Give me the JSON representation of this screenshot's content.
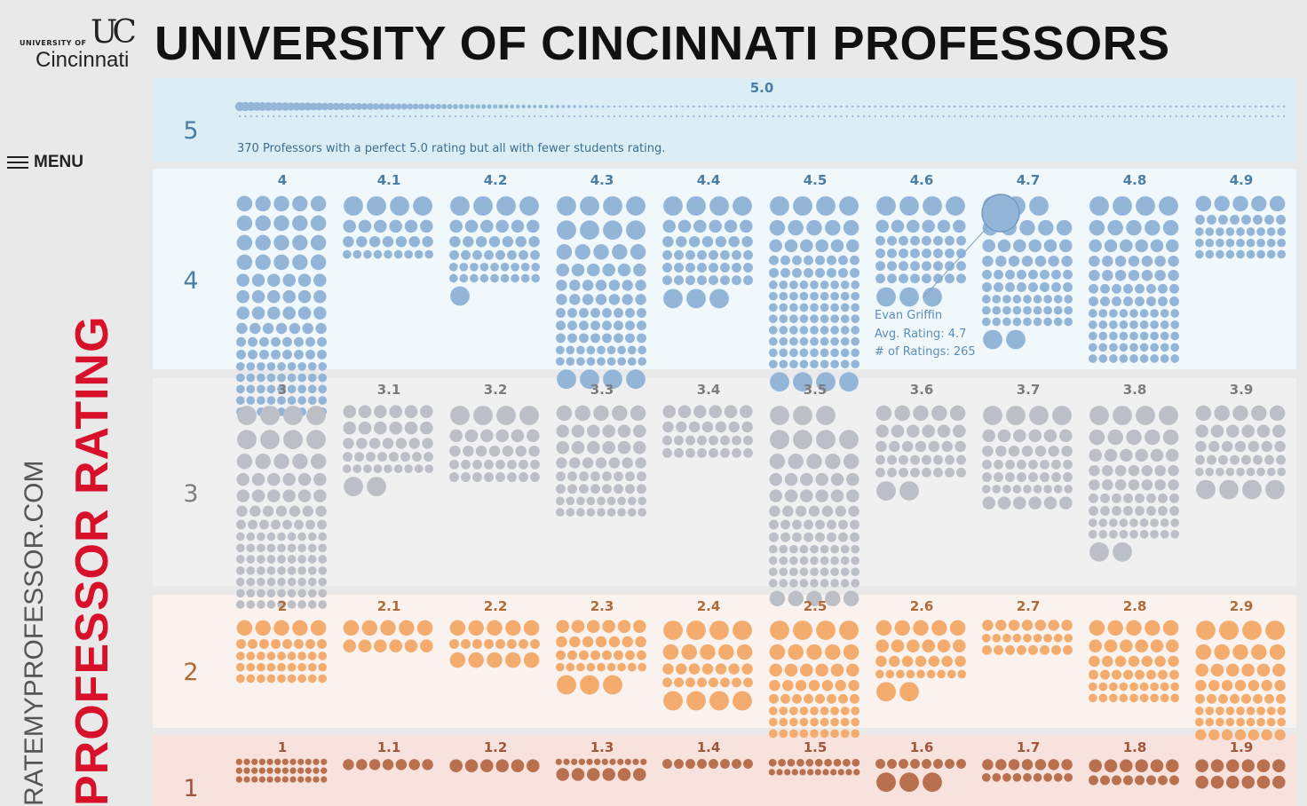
{
  "logo": {
    "small_text": "UNIVERSITY OF",
    "monogram": "UC",
    "name": "Cincinnati"
  },
  "header": {
    "title": "UNIVERSITY OF CINCINNATI PROFESSORS"
  },
  "menu": {
    "label": "MENU"
  },
  "side": {
    "site_label": "RATEMYPROFESSOR.COM",
    "axis_title": "PROFESSOR RATING"
  },
  "colors": {
    "row5_bg": "#dbeef5",
    "row4_bg": "#f0f8fb",
    "row3_bg": "#f0f0f0",
    "row2_bg": "#f9f2ee",
    "row1_bg": "#f8e2de",
    "blue_dot": "#93b6d8",
    "gray_dot": "#bcc0c6",
    "orange_dot": "#f4ac6e",
    "brown_dot": "#b8704e",
    "blue_label": "#4a7ea4",
    "gray_label": "#7d7d7d",
    "orange_label": "#b06a36",
    "brown_label": "#a2553a"
  },
  "chart_data": {
    "type": "dot-matrix",
    "row_labels": [
      "5",
      "4",
      "3",
      "2",
      "1"
    ],
    "perfect_label": "5.0",
    "perfect_note": "370 Professors with a perfect 5.0 rating but all with fewer students rating.",
    "perfect_count": 370,
    "rows": [
      {
        "row": "4",
        "columns": [
          {
            "label": "4",
            "dots": [
              5,
              5,
              5,
              5,
              6,
              6,
              6,
              7,
              8,
              8,
              9,
              9,
              9,
              9,
              9
            ]
          },
          {
            "label": "4.1",
            "dots": [
              4,
              6,
              7,
              9
            ]
          },
          {
            "label": "4.2",
            "dots": [
              4,
              6,
              7,
              8,
              9,
              9,
              1
            ]
          },
          {
            "label": "4.3",
            "dots": [
              4,
              4,
              5,
              6,
              7,
              7,
              8,
              8,
              8,
              9,
              9,
              4
            ]
          },
          {
            "label": "4.4",
            "dots": [
              4,
              6,
              7,
              8,
              8,
              8,
              3
            ]
          },
          {
            "label": "4.5",
            "dots": [
              4,
              5,
              6,
              8,
              8,
              9,
              9,
              9,
              9,
              9,
              9,
              9,
              9,
              4
            ]
          },
          {
            "label": "4.6",
            "dots": [
              4,
              6,
              8,
              8,
              8,
              8,
              3
            ]
          },
          {
            "label": "4.7",
            "dots": [
              3,
              5,
              6,
              7,
              8,
              8,
              9,
              9,
              9,
              2
            ]
          },
          {
            "label": "4.8",
            "dots": [
              4,
              5,
              6,
              7,
              7,
              8,
              8,
              9,
              9,
              9,
              9,
              9
            ]
          },
          {
            "label": "4.9",
            "dots": [
              5,
              8,
              9,
              9,
              9
            ]
          }
        ]
      },
      {
        "row": "3",
        "columns": [
          {
            "label": "3",
            "dots": [
              4,
              4,
              5,
              6,
              6,
              7,
              8,
              9,
              9,
              9,
              9,
              9,
              9,
              9
            ]
          },
          {
            "label": "3.1",
            "dots": [
              6,
              6,
              7,
              8,
              9,
              2
            ]
          },
          {
            "label": "3.2",
            "dots": [
              4,
              6,
              7,
              8,
              8
            ]
          },
          {
            "label": "3.3",
            "dots": [
              5,
              6,
              6,
              7,
              8,
              8,
              9,
              9
            ]
          },
          {
            "label": "3.4",
            "dots": [
              6,
              7,
              8,
              8
            ]
          },
          {
            "label": "3.5",
            "dots": [
              3,
              4,
              5,
              6,
              6,
              7,
              8,
              8,
              9,
              9,
              9,
              9,
              5
            ]
          },
          {
            "label": "3.6",
            "dots": [
              5,
              6,
              7,
              8,
              8,
              2
            ]
          },
          {
            "label": "3.7",
            "dots": [
              4,
              6,
              7,
              8,
              8,
              9,
              6
            ]
          },
          {
            "label": "3.8",
            "dots": [
              4,
              5,
              6,
              7,
              7,
              8,
              8,
              9,
              9,
              2
            ]
          },
          {
            "label": "3.9",
            "dots": [
              5,
              6,
              7,
              8,
              9,
              4
            ]
          }
        ]
      },
      {
        "row": "2",
        "columns": [
          {
            "label": "2",
            "dots": [
              5,
              8,
              9,
              9,
              9
            ]
          },
          {
            "label": "2.1",
            "dots": [
              5,
              6
            ]
          },
          {
            "label": "2.2",
            "dots": [
              5,
              8,
              5
            ]
          },
          {
            "label": "2.3",
            "dots": [
              6,
              7,
              8,
              9,
              3
            ]
          },
          {
            "label": "2.4",
            "dots": [
              4,
              5,
              7,
              8,
              4
            ]
          },
          {
            "label": "2.5",
            "dots": [
              4,
              5,
              6,
              7,
              8,
              9,
              9,
              9
            ]
          },
          {
            "label": "2.6",
            "dots": [
              5,
              6,
              7,
              9,
              2
            ]
          },
          {
            "label": "2.7",
            "dots": [
              7,
              9,
              8
            ]
          },
          {
            "label": "2.8",
            "dots": [
              5,
              6,
              7,
              8,
              9,
              9
            ]
          },
          {
            "label": "2.9",
            "dots": [
              4,
              5,
              6,
              7,
              8,
              9,
              9,
              7
            ]
          }
        ]
      },
      {
        "row": "1",
        "columns": [
          {
            "label": "1",
            "dots": [
              12,
              12,
              12
            ]
          },
          {
            "label": "1.1",
            "dots": [
              7
            ]
          },
          {
            "label": "1.2",
            "dots": [
              6
            ]
          },
          {
            "label": "1.3",
            "dots": [
              12,
              6
            ]
          },
          {
            "label": "1.4",
            "dots": [
              8
            ]
          },
          {
            "label": "1.5",
            "dots": [
              10,
              12
            ]
          },
          {
            "label": "1.6",
            "dots": [
              8,
              3
            ]
          },
          {
            "label": "1.7",
            "dots": [
              7,
              9
            ]
          },
          {
            "label": "1.8",
            "dots": [
              6,
              8
            ]
          },
          {
            "label": "1.9",
            "dots": [
              6,
              6
            ]
          }
        ]
      }
    ],
    "annotation": {
      "name": "Evan Griffin",
      "rating_text": "Avg. Rating: 4.7",
      "count_text": "# of Ratings: 265"
    }
  }
}
